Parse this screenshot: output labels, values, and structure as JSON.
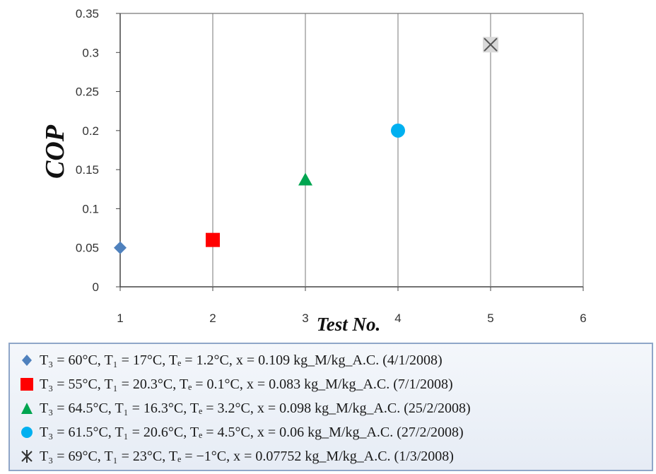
{
  "chart_data": {
    "type": "scatter",
    "xlabel": "Test No.",
    "ylabel": "COP",
    "xlim": [
      1,
      6
    ],
    "ylim": [
      0,
      0.35
    ],
    "x_ticks": [
      "1",
      "2",
      "3",
      "4",
      "5",
      "6"
    ],
    "y_ticks": [
      "0",
      "0.05",
      "0.1",
      "0.15",
      "0.2",
      "0.25",
      "0.3",
      "0.35"
    ],
    "grid": "vertical",
    "legend_position": "bottom",
    "series": [
      {
        "name": "T3 = 60°C, T1 = 17°C, Te = 1.2°C, x = 0.109 kgM/kgA.C. (4/1/2008)",
        "x": 1,
        "y": 0.05,
        "marker": "diamond",
        "color": "#4f81bd"
      },
      {
        "name": "T3 = 55°C, T1 = 20.3°C, Te = 0.1°C, x = 0.083 kgM/kgA.C. (7/1/2008)",
        "x": 2,
        "y": 0.06,
        "marker": "square",
        "color": "#ff0000"
      },
      {
        "name": "T3 = 64.5°C, T1 = 16.3°C, Te = 3.2°C, x = 0.098 kgM/kgA.C. (25/2/2008)",
        "x": 3,
        "y": 0.137,
        "marker": "triangle",
        "color": "#00a550"
      },
      {
        "name": "T3 = 61.5°C, T1 = 20.6°C, Te = 4.5°C, x = 0.06 kgM/kgA.C. (27/2/2008)",
        "x": 4,
        "y": 0.2,
        "marker": "circle",
        "color": "#00b0f0"
      },
      {
        "name": "T3 = 69°C, T1 = 23°C, Te = −1°C, x = 0.07752 kgM/kgA.C. (1/3/2008)",
        "x": 5,
        "y": 0.31,
        "marker": "star",
        "color": "#555555"
      }
    ]
  },
  "legend": {
    "items": [
      {
        "label": "T₃ = 60°C, T₁ = 17°C, Tₑ = 1.2°C, x = 0.109 kg_M/kg_A.C. (4/1/2008)"
      },
      {
        "label": "T₃ = 55°C, T₁ = 20.3°C, Tₑ = 0.1°C, x = 0.083 kg_M/kg_A.C. (7/1/2008)"
      },
      {
        "label": "T₃ = 64.5°C, T₁ = 16.3°C, Tₑ = 3.2°C, x = 0.098 kg_M/kg_A.C. (25/2/2008)"
      },
      {
        "label": "T₃ = 61.5°C, T₁ = 20.6°C, Tₑ = 4.5°C, x = 0.06 kg_M/kg_A.C. (27/2/2008)"
      },
      {
        "label": "T₃ = 69°C, T₁ = 23°C, Tₑ = −1°C, x = 0.07752 kg_M/kg_A.C. (1/3/2008)"
      }
    ]
  }
}
